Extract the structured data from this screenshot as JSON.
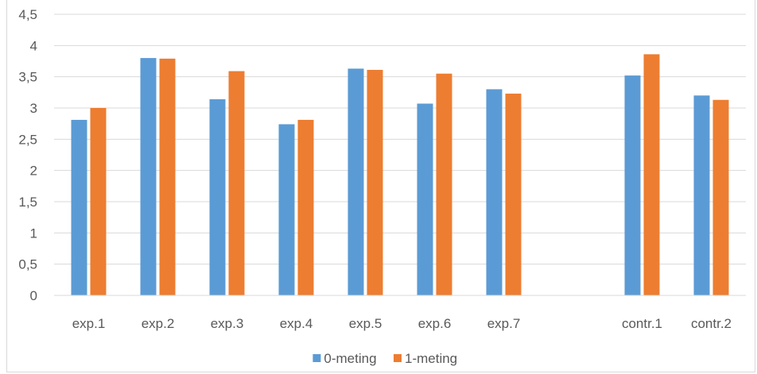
{
  "chart_data": {
    "type": "bar",
    "title": "",
    "xlabel": "",
    "ylabel": "",
    "ylim": [
      0,
      4.5
    ],
    "y_ticks": [
      "0",
      "0,5",
      "1",
      "1,5",
      "2",
      "2,5",
      "3",
      "3,5",
      "4",
      "4,5"
    ],
    "grid": true,
    "legend_position": "bottom",
    "categories": [
      "exp.1",
      "exp.2",
      "exp.3",
      "exp.4",
      "exp.5",
      "exp.6",
      "exp.7",
      "",
      "contr.1",
      "contr.2"
    ],
    "series": [
      {
        "name": "0-meting",
        "color": "#5b9bd5",
        "values": [
          2.81,
          3.8,
          3.14,
          2.74,
          3.63,
          3.07,
          3.3,
          null,
          3.52,
          3.2
        ]
      },
      {
        "name": "1-meting",
        "color": "#ed7d31",
        "values": [
          3.0,
          3.79,
          3.59,
          2.81,
          3.61,
          3.55,
          3.23,
          null,
          3.86,
          3.13
        ]
      }
    ]
  }
}
